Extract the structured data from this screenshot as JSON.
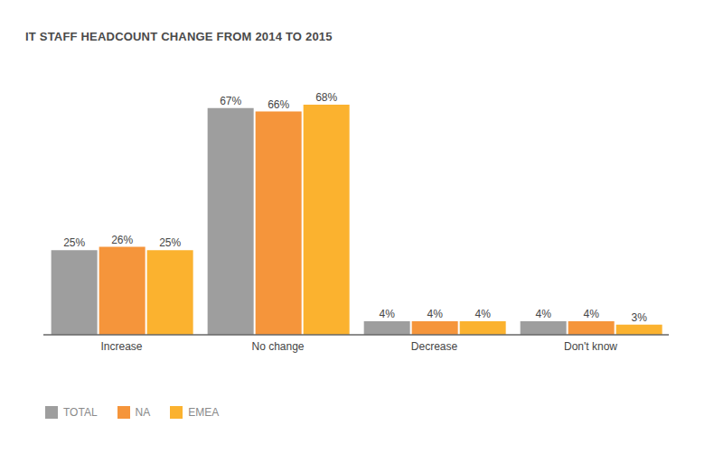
{
  "chart_data": {
    "type": "bar",
    "title": "IT STAFF HEADCOUNT CHANGE FROM 2014 TO 2015",
    "categories": [
      "Increase",
      "No change",
      "Decrease",
      "Don't know"
    ],
    "series": [
      {
        "name": "TOTAL",
        "color": "#9e9e9e",
        "values": [
          25,
          67,
          4,
          4
        ],
        "value_labels": [
          "25%",
          "67%",
          "4%",
          "4%"
        ]
      },
      {
        "name": "NA",
        "color": "#f5953b",
        "values": [
          26,
          66,
          4,
          4
        ],
        "value_labels": [
          "26%",
          "66%",
          "4%",
          "4%"
        ]
      },
      {
        "name": "EMEA",
        "color": "#fbb22f",
        "values": [
          25,
          68,
          4,
          3
        ],
        "value_labels": [
          "25%",
          "68%",
          "4%",
          "3%"
        ]
      }
    ],
    "ylim": [
      0,
      80
    ],
    "data_labels": true,
    "tick_labels": "x",
    "legend": "lower left",
    "grid": false
  }
}
